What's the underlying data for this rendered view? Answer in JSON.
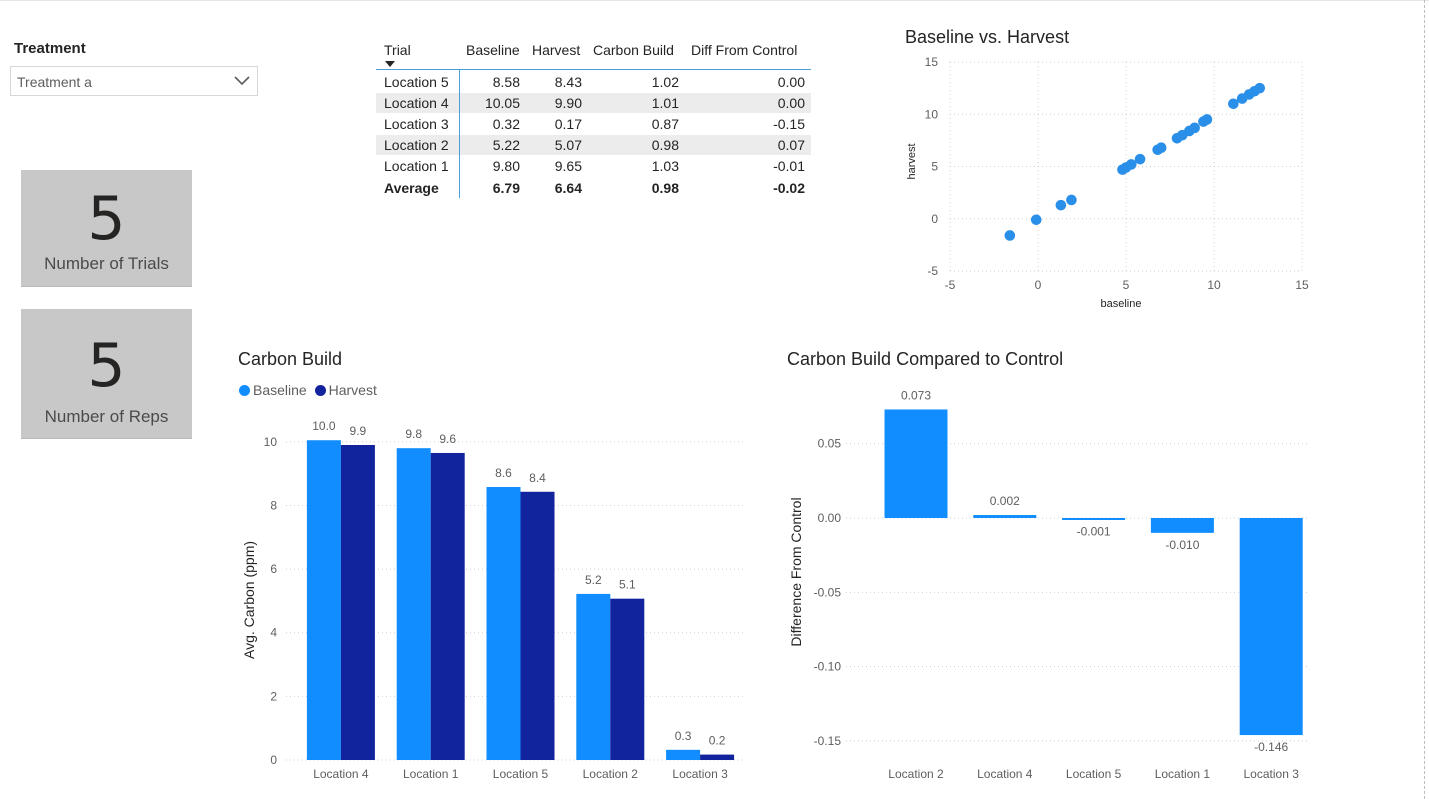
{
  "slicer": {
    "title": "Treatment",
    "value": "Treatment a"
  },
  "cards": {
    "trials": {
      "value": "5",
      "label": "Number of Trials"
    },
    "reps": {
      "value": "5",
      "label": "Number of Reps"
    }
  },
  "table": {
    "headers": [
      "Trial",
      "Baseline",
      "Harvest",
      "Carbon Build",
      "Diff From Control"
    ],
    "rows": [
      [
        "Location 5",
        "8.58",
        "8.43",
        "1.02",
        "0.00"
      ],
      [
        "Location 4",
        "10.05",
        "9.90",
        "1.01",
        "0.00"
      ],
      [
        "Location 3",
        "0.32",
        "0.17",
        "0.87",
        "-0.15"
      ],
      [
        "Location 2",
        "5.22",
        "5.07",
        "0.98",
        "0.07"
      ],
      [
        "Location 1",
        "9.80",
        "9.65",
        "1.03",
        "-0.01"
      ]
    ],
    "total": [
      "Average",
      "6.79",
      "6.64",
      "0.98",
      "-0.02"
    ]
  },
  "colors": {
    "baseline": "#118DFF",
    "harvest": "#12239E",
    "card_bg": "#C8C8C8",
    "scatter": "#2A8FE8"
  },
  "chart_data": [
    {
      "type": "scatter",
      "title": "Baseline vs. Harvest",
      "xlabel": "baseline",
      "ylabel": "harvest",
      "xlim": [
        -5,
        15
      ],
      "ylim": [
        -5,
        15
      ],
      "x_ticks": [
        "-5",
        "0",
        "5",
        "10",
        "15"
      ],
      "y_ticks": [
        "-5",
        "0",
        "5",
        "10",
        "15"
      ],
      "grid": true,
      "points": [
        {
          "x": -1.6,
          "y": -1.6
        },
        {
          "x": -0.1,
          "y": -0.1
        },
        {
          "x": 1.3,
          "y": 1.3
        },
        {
          "x": 1.9,
          "y": 1.8
        },
        {
          "x": 4.8,
          "y": 4.7
        },
        {
          "x": 5.0,
          "y": 4.9
        },
        {
          "x": 5.3,
          "y": 5.2
        },
        {
          "x": 5.8,
          "y": 5.7
        },
        {
          "x": 6.8,
          "y": 6.6
        },
        {
          "x": 7.0,
          "y": 6.8
        },
        {
          "x": 7.9,
          "y": 7.7
        },
        {
          "x": 8.2,
          "y": 8.0
        },
        {
          "x": 8.6,
          "y": 8.4
        },
        {
          "x": 8.9,
          "y": 8.7
        },
        {
          "x": 9.4,
          "y": 9.3
        },
        {
          "x": 9.6,
          "y": 9.5
        },
        {
          "x": 11.1,
          "y": 11.0
        },
        {
          "x": 11.6,
          "y": 11.5
        },
        {
          "x": 12.0,
          "y": 11.9
        },
        {
          "x": 12.3,
          "y": 12.2
        },
        {
          "x": 12.6,
          "y": 12.5
        }
      ]
    },
    {
      "type": "bar",
      "title": "Carbon Build",
      "ylabel": "Avg. Carbon (ppm)",
      "ylim": [
        0,
        11
      ],
      "y_ticks": [
        "0",
        "2",
        "4",
        "6",
        "8",
        "10"
      ],
      "categories": [
        "Location 4",
        "Location 1",
        "Location 5",
        "Location 2",
        "Location 3"
      ],
      "series": [
        {
          "name": "Baseline",
          "values": [
            10.05,
            9.8,
            8.58,
            5.22,
            0.32
          ],
          "labels": [
            "10.0",
            "9.8",
            "8.6",
            "5.2",
            "0.3"
          ]
        },
        {
          "name": "Harvest",
          "values": [
            9.9,
            9.65,
            8.43,
            5.07,
            0.17
          ],
          "labels": [
            "9.9",
            "9.6",
            "8.4",
            "5.1",
            "0.2"
          ]
        }
      ],
      "legend": "top-left",
      "grid": true
    },
    {
      "type": "bar",
      "title": "Carbon Build Compared to Control",
      "ylabel": "Difference From Control",
      "ylim": [
        -0.15,
        0.08
      ],
      "y_ticks": [
        "0.05",
        "0.00",
        "-0.05",
        "-0.10",
        "-0.15"
      ],
      "categories": [
        "Location 2",
        "Location 4",
        "Location 5",
        "Location 1",
        "Location 3"
      ],
      "values": [
        0.073,
        0.002,
        -0.001,
        -0.01,
        -0.146
      ],
      "labels": [
        "0.073",
        "0.002",
        "-0.001",
        "-0.010",
        "-0.146"
      ],
      "grid": true
    }
  ]
}
